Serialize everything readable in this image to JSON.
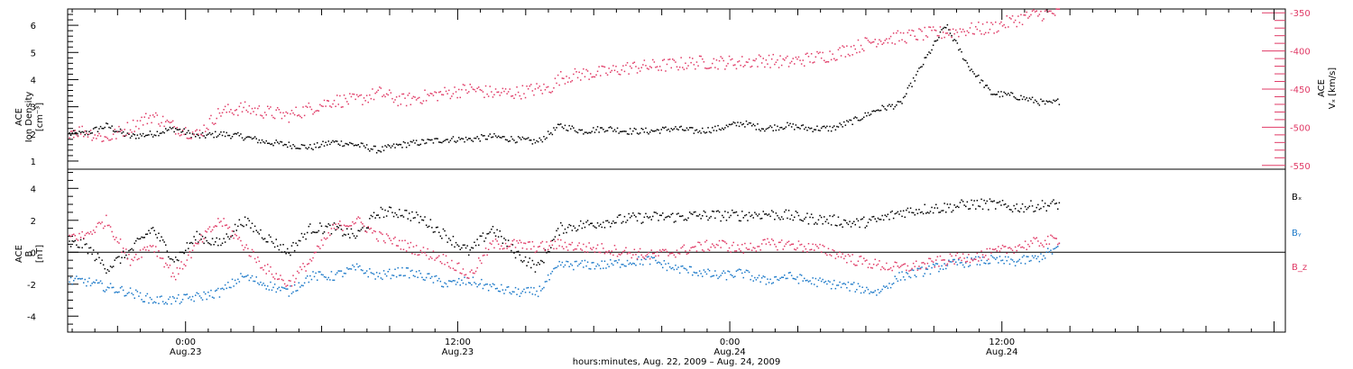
{
  "colors": {
    "black": "#000000",
    "blue": "#1a78c8",
    "red": "#e03a66"
  },
  "chart_data": [
    {
      "type": "scatter",
      "panel": "top",
      "ylabel_lines": [
        "ACE",
        "Ion Density"
      ],
      "ylabel_units": "[cm⁻³]",
      "ylim": [
        0.7,
        6.6
      ],
      "yticks": [
        1,
        2,
        3,
        4,
        5,
        6
      ],
      "y2label_lines": [
        "ACE",
        "Vₓ [km/s]"
      ],
      "y2lim": [
        -555,
        -345
      ],
      "y2ticks": [
        -350,
        -400,
        -450,
        -500,
        -550
      ],
      "grid": false,
      "series": [
        {
          "axis": "left",
          "color": "black",
          "jitter": 0.12,
          "x": [
            -4.5,
            -3.5,
            -2.5,
            -1.5,
            -0.5,
            0.5,
            1.5,
            2.5,
            3.5,
            4.5,
            5.5,
            6.5,
            7.5,
            8.5,
            9.5,
            10.5,
            11.5,
            12.5,
            13.5,
            14.5,
            15.5,
            16.5,
            17.5,
            18.5,
            19.5,
            20.5,
            21.5,
            22.5,
            23.5,
            24.5,
            25.5,
            26.5,
            27.5,
            28.5,
            29.5,
            30.5,
            31.5,
            32.5,
            33.5,
            34.5,
            35.5,
            36.5,
            37.5,
            38.0,
            38.5
          ],
          "y": [
            2.0,
            2.3,
            1.9,
            2.0,
            2.2,
            1.9,
            2.0,
            1.9,
            1.7,
            1.6,
            1.5,
            1.7,
            1.6,
            1.4,
            1.6,
            1.7,
            1.8,
            1.8,
            1.9,
            1.8,
            1.7,
            2.3,
            2.1,
            2.2,
            2.1,
            2.1,
            2.2,
            2.1,
            2.2,
            2.4,
            2.2,
            2.3,
            2.2,
            2.2,
            2.5,
            2.9,
            3.1,
            4.6,
            6.0,
            4.5,
            3.5,
            3.4,
            3.2,
            3.1,
            3.2
          ]
        },
        {
          "axis": "right",
          "color": "red",
          "jitter": 9,
          "x": [
            -4.5,
            -3.5,
            -2.5,
            -1.5,
            -0.5,
            0.5,
            1.5,
            2.5,
            3.5,
            4.5,
            5.5,
            6.5,
            7.5,
            8.5,
            9.5,
            10.5,
            11.5,
            12.5,
            13.5,
            14.5,
            15.5,
            16.0,
            16.5,
            17.5,
            18.5,
            19.5,
            20.5,
            21.5,
            22.5,
            23.5,
            24.5,
            25.5,
            26.5,
            27.5,
            28.5,
            29.5,
            30.5,
            31.5,
            32.5,
            33.5,
            34.5,
            35.5,
            36.5,
            37.5,
            38.5
          ],
          "y": [
            -505,
            -515,
            -500,
            -485,
            -500,
            -510,
            -480,
            -475,
            -480,
            -485,
            -475,
            -465,
            -465,
            -455,
            -465,
            -460,
            -455,
            -450,
            -455,
            -455,
            -450,
            -450,
            -435,
            -430,
            -428,
            -422,
            -420,
            -418,
            -415,
            -415,
            -415,
            -412,
            -415,
            -410,
            -405,
            -395,
            -385,
            -382,
            -378,
            -376,
            -372,
            -370,
            -360,
            -352,
            -350
          ]
        }
      ]
    },
    {
      "type": "scatter",
      "panel": "bottom",
      "ylabel_lines": [
        "ACE",
        "B"
      ],
      "ylabel_units": "[nT]",
      "ylim": [
        -5.0,
        5.2
      ],
      "yticks": [
        -4,
        -2,
        0,
        2,
        4
      ],
      "zero_line": true,
      "grid": false,
      "legend_position": "right",
      "series": [
        {
          "name": "Bₓ",
          "color": "black",
          "jitter": 0.35,
          "x": [
            -4.5,
            -3.5,
            -2.5,
            -1.5,
            -0.5,
            0.5,
            1.5,
            2.5,
            3.5,
            4.5,
            5.5,
            6.5,
            7.5,
            8.5,
            9.5,
            10.5,
            11.5,
            12.5,
            13.5,
            14.5,
            15.5,
            16.5,
            17.5,
            18.5,
            19.5,
            20.5,
            21.5,
            22.5,
            23.5,
            24.5,
            25.5,
            26.5,
            27.5,
            28.5,
            29.5,
            30.5,
            31.5,
            32.5,
            33.5,
            34.5,
            35.5,
            36.5,
            37.5,
            38.5
          ],
          "y": [
            0.5,
            -1.0,
            0.0,
            1.5,
            -0.5,
            1.0,
            0.5,
            2.0,
            1.0,
            0.0,
            1.5,
            1.5,
            1.0,
            2.5,
            2.5,
            2.0,
            1.0,
            0.0,
            1.5,
            0.0,
            -1.0,
            1.5,
            1.7,
            1.9,
            2.1,
            2.2,
            2.2,
            2.3,
            2.3,
            2.3,
            2.4,
            2.3,
            2.1,
            2.0,
            1.8,
            2.0,
            2.5,
            2.7,
            2.8,
            3.0,
            3.0,
            2.8,
            2.9,
            3.0
          ]
        },
        {
          "name": "Bᵧ",
          "color": "blue",
          "jitter": 0.3,
          "x": [
            -4.5,
            -3.5,
            -2.5,
            -1.5,
            -0.5,
            0.5,
            1.5,
            2.5,
            3.5,
            4.5,
            5.5,
            6.5,
            7.5,
            8.5,
            9.5,
            10.5,
            11.5,
            12.5,
            13.5,
            14.5,
            15.5,
            16.5,
            17.5,
            18.5,
            19.5,
            20.5,
            21.5,
            22.5,
            23.5,
            24.5,
            25.5,
            26.5,
            27.5,
            28.5,
            29.5,
            30.5,
            31.5,
            32.5,
            33.5,
            34.5,
            35.5,
            36.5,
            37.5,
            38.5
          ],
          "y": [
            -1.8,
            -2.2,
            -2.5,
            -3.0,
            -3.0,
            -2.8,
            -2.5,
            -1.5,
            -2.0,
            -2.5,
            -1.5,
            -1.5,
            -1.0,
            -1.5,
            -1.2,
            -1.5,
            -2.0,
            -1.8,
            -2.2,
            -2.5,
            -2.5,
            -0.8,
            -0.8,
            -0.8,
            -0.6,
            -0.5,
            -1.0,
            -1.2,
            -1.5,
            -1.3,
            -1.8,
            -1.5,
            -1.8,
            -2.0,
            -2.2,
            -2.5,
            -1.5,
            -1.2,
            -0.8,
            -0.6,
            -0.5,
            -0.6,
            -0.4,
            0.3
          ]
        },
        {
          "name": "B_z",
          "color": "red",
          "jitter": 0.35,
          "x": [
            -4.5,
            -3.5,
            -2.5,
            -1.5,
            -0.5,
            0.5,
            1.5,
            2.5,
            3.5,
            4.5,
            5.5,
            6.5,
            7.5,
            8.5,
            9.5,
            10.5,
            11.5,
            12.5,
            13.5,
            14.5,
            15.5,
            16.5,
            17.5,
            18.5,
            19.5,
            20.5,
            21.5,
            22.5,
            23.5,
            24.5,
            25.5,
            26.5,
            27.5,
            28.5,
            29.5,
            30.5,
            31.5,
            32.5,
            33.5,
            34.5,
            35.5,
            36.5,
            37.5,
            38.5
          ],
          "y": [
            1.0,
            2.0,
            -0.5,
            0.5,
            -1.5,
            0.5,
            2.0,
            0.5,
            -1.0,
            -2.0,
            -0.5,
            1.5,
            2.0,
            1.0,
            0.5,
            0.0,
            -0.5,
            -1.5,
            0.5,
            0.5,
            0.3,
            0.5,
            0.3,
            0.2,
            0.0,
            -0.2,
            0.0,
            0.3,
            0.5,
            0.2,
            0.5,
            0.5,
            0.3,
            0.0,
            -0.5,
            -0.8,
            -1.0,
            -0.8,
            -0.5,
            -0.3,
            -0.1,
            0.3,
            0.6,
            0.8
          ]
        }
      ]
    }
  ],
  "x_axis": {
    "range_hours": [
      -5.2,
      48.5
    ],
    "data_end_hours": 38.5,
    "ticks": [
      {
        "hours": 0,
        "time": "0:00",
        "date": "Aug.23"
      },
      {
        "hours": 12,
        "time": "12:00",
        "date": "Aug.23"
      },
      {
        "hours": 24,
        "time": "0:00",
        "date": "Aug.24"
      },
      {
        "hours": 36,
        "time": "12:00",
        "date": "Aug.24"
      }
    ],
    "label": "hours:minutes, Aug. 22, 2009 – Aug. 24, 2009"
  }
}
